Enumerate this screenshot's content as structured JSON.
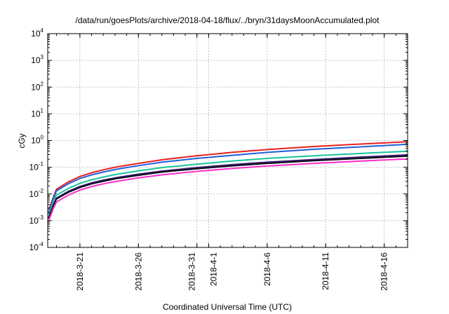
{
  "chart_data": {
    "type": "line",
    "title": "/data/run/goesPlots/archive/2018-04-18/flux/../bryn/31daysMoonAccumulated.plot",
    "xlabel": "Coordinated Universal Time (UTC)",
    "ylabel": "cGy",
    "x_range": [
      "2018-03-18T06:00",
      "2018-04-18T00:00"
    ],
    "x_ticks": [
      "2018-3-21",
      "2018-3-26",
      "2018-3-31",
      "2018-4-1",
      "2018-4-6",
      "2018-4-11",
      "2018-4-16"
    ],
    "y_scale": "log",
    "ylim": [
      0.0001,
      10000
    ],
    "y_ticks": [
      {
        "base": "10",
        "exp": "-4",
        "value": 0.0001
      },
      {
        "base": "10",
        "exp": "-3",
        "value": 0.001
      },
      {
        "base": "10",
        "exp": "-2",
        "value": 0.01
      },
      {
        "base": "10",
        "exp": "-1",
        "value": 0.1
      },
      {
        "base": "10",
        "exp": "0",
        "value": 1
      },
      {
        "base": "10",
        "exp": "1",
        "value": 10
      },
      {
        "base": "10",
        "exp": "2",
        "value": 100
      },
      {
        "base": "10",
        "exp": "3",
        "value": 1000
      },
      {
        "base": "10",
        "exp": "4",
        "value": 10000
      }
    ],
    "grid": true,
    "x": [
      "2018-03-18T08:00",
      "2018-03-18T18:00",
      "2018-03-19T00:00",
      "2018-03-20T00:00",
      "2018-03-21T00:00",
      "2018-03-22T00:00",
      "2018-03-23T00:00",
      "2018-03-24T00:00",
      "2018-03-26T00:00",
      "2018-03-28T00:00",
      "2018-03-31T00:00",
      "2018-04-03T00:00",
      "2018-04-06T00:00",
      "2018-04-10T00:00",
      "2018-04-14T00:00",
      "2018-04-18T00:00"
    ],
    "series": [
      {
        "color": "#e8201e",
        "values": [
          0.0025,
          0.008,
          0.015,
          0.028,
          0.045,
          0.062,
          0.08,
          0.1,
          0.14,
          0.19,
          0.27,
          0.36,
          0.46,
          0.6,
          0.74,
          0.9
        ]
      },
      {
        "color": "#1f5fe0",
        "values": [
          0.002,
          0.007,
          0.013,
          0.024,
          0.038,
          0.052,
          0.066,
          0.082,
          0.115,
          0.155,
          0.215,
          0.28,
          0.36,
          0.47,
          0.58,
          0.72
        ]
      },
      {
        "color": "#19c49a",
        "values": [
          0.0016,
          0.0055,
          0.009,
          0.016,
          0.025,
          0.034,
          0.043,
          0.053,
          0.073,
          0.097,
          0.13,
          0.17,
          0.215,
          0.27,
          0.33,
          0.4
        ]
      },
      {
        "color": "#3a1a6e",
        "values": [
          0.0013,
          0.004,
          0.007,
          0.0125,
          0.019,
          0.026,
          0.033,
          0.04,
          0.055,
          0.072,
          0.097,
          0.125,
          0.155,
          0.195,
          0.24,
          0.29
        ]
      },
      {
        "color": "#0c0c1a",
        "values": [
          0.0012,
          0.0037,
          0.0065,
          0.0115,
          0.0175,
          0.024,
          0.03,
          0.037,
          0.05,
          0.066,
          0.088,
          0.113,
          0.14,
          0.177,
          0.215,
          0.26
        ]
      },
      {
        "color": "#ff2ec8",
        "values": [
          0.001,
          0.003,
          0.005,
          0.009,
          0.014,
          0.019,
          0.024,
          0.029,
          0.04,
          0.052,
          0.07,
          0.09,
          0.111,
          0.14,
          0.17,
          0.205
        ]
      }
    ]
  }
}
